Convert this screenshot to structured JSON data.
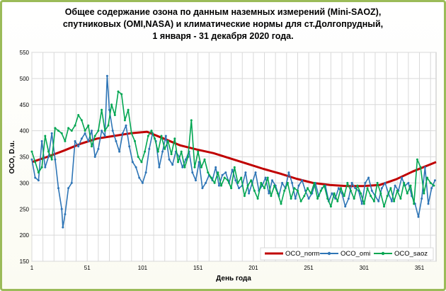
{
  "chart_data": {
    "type": "line",
    "title": [
      "Общее содержание озона по данным  наземных измерений (Mini-SAOZ),",
      "спутниковых (OMI,NASA) и климатические  нормы для ст.Долгопрудный,",
      "1 января - 31 декабря 2020 года."
    ],
    "xlabel": "День года",
    "ylabel": "ОСО, D.u.",
    "xlim": [
      1,
      366
    ],
    "ylim": [
      150,
      550
    ],
    "xticks": [
      1,
      51,
      101,
      151,
      201,
      251,
      301,
      351
    ],
    "yticks": [
      150,
      200,
      250,
      300,
      350,
      400,
      450,
      500,
      550
    ],
    "grid": true,
    "legend_position": "bottom-right",
    "series": [
      {
        "name": "OCO_norm",
        "color": "#c00000",
        "marker": "none",
        "x": [
          1,
          15,
          30,
          45,
          60,
          75,
          90,
          105,
          120,
          135,
          150,
          165,
          180,
          195,
          210,
          225,
          240,
          255,
          270,
          285,
          300,
          315,
          330,
          345,
          366
        ],
        "y": [
          340,
          350,
          362,
          375,
          385,
          390,
          395,
          398,
          385,
          372,
          364,
          357,
          347,
          337,
          327,
          318,
          308,
          300,
          296,
          294,
          294,
          296,
          307,
          322,
          340
        ]
      },
      {
        "name": "OCO_omi",
        "color": "#2e75b6",
        "marker": "dot",
        "x": [
          1,
          4,
          7,
          10,
          13,
          16,
          19,
          22,
          25,
          28,
          29,
          31,
          34,
          37,
          40,
          43,
          46,
          49,
          52,
          55,
          58,
          61,
          64,
          67,
          69,
          71,
          74,
          77,
          80,
          83,
          86,
          89,
          92,
          95,
          98,
          101,
          104,
          107,
          110,
          113,
          116,
          119,
          122,
          125,
          128,
          131,
          134,
          137,
          140,
          143,
          146,
          149,
          152,
          155,
          158,
          161,
          164,
          167,
          170,
          173,
          176,
          179,
          182,
          185,
          188,
          191,
          194,
          197,
          200,
          203,
          206,
          209,
          212,
          215,
          218,
          221,
          224,
          227,
          230,
          233,
          236,
          239,
          242,
          245,
          248,
          251,
          254,
          257,
          260,
          263,
          266,
          269,
          272,
          275,
          278,
          281,
          284,
          287,
          290,
          293,
          296,
          299,
          302,
          305,
          308,
          311,
          314,
          317,
          320,
          323,
          326,
          329,
          332,
          335,
          338,
          341,
          344,
          347,
          350,
          353,
          356,
          359,
          362,
          365
        ],
        "y": [
          345,
          310,
          305,
          380,
          330,
          350,
          395,
          345,
          290,
          250,
          215,
          240,
          290,
          300,
          380,
          370,
          385,
          395,
          380,
          400,
          350,
          365,
          400,
          390,
          505,
          440,
          400,
          380,
          360,
          395,
          410,
          370,
          340,
          330,
          310,
          300,
          320,
          365,
          395,
          380,
          330,
          360,
          390,
          345,
          335,
          360,
          350,
          330,
          345,
          360,
          320,
          305,
          340,
          290,
          300,
          315,
          305,
          330,
          295,
          315,
          320,
          300,
          325,
          305,
          290,
          295,
          320,
          280,
          300,
          320,
          285,
          295,
          310,
          280,
          305,
          295,
          275,
          300,
          290,
          320,
          300,
          270,
          295,
          305,
          285,
          270,
          280,
          300,
          275,
          290,
          295,
          265,
          280,
          270,
          290,
          280,
          255,
          270,
          300,
          290,
          285,
          260,
          300,
          310,
          285,
          275,
          265,
          290,
          300,
          280,
          265,
          295,
          285,
          310,
          295,
          300,
          275,
          260,
          235,
          270,
          330,
          260,
          290,
          305
        ],
        "annotations": []
      },
      {
        "name": "OCO_saoz",
        "color": "#00a651",
        "marker": "dot",
        "x": [
          1,
          4,
          7,
          10,
          13,
          16,
          19,
          22,
          25,
          28,
          31,
          34,
          37,
          40,
          43,
          46,
          49,
          52,
          55,
          58,
          61,
          64,
          67,
          70,
          73,
          76,
          79,
          82,
          85,
          88,
          91,
          94,
          97,
          100,
          103,
          106,
          109,
          112,
          115,
          118,
          121,
          124,
          127,
          130,
          133,
          136,
          139,
          142,
          145,
          148,
          151,
          154,
          157,
          160,
          163,
          166,
          169,
          172,
          175,
          178,
          181,
          184,
          187,
          190,
          193,
          196,
          199,
          202,
          205,
          208,
          211,
          214,
          217,
          220,
          223,
          226,
          229,
          232,
          235,
          238,
          241,
          244,
          247,
          250,
          253,
          256,
          259,
          262,
          265,
          268,
          271,
          274,
          277,
          280,
          283,
          286,
          289,
          292,
          295,
          298,
          301,
          304,
          307,
          310,
          313,
          316,
          319,
          322,
          325,
          328,
          331,
          334,
          337,
          340,
          343,
          346,
          349,
          352,
          355,
          358,
          361,
          364
        ],
        "y": [
          360,
          340,
          320,
          330,
          390,
          360,
          345,
          405,
          400,
          395,
          380,
          405,
          400,
          410,
          430,
          420,
          400,
          410,
          370,
          390,
          400,
          440,
          400,
          410,
          450,
          430,
          475,
          470,
          420,
          440,
          395,
          380,
          350,
          340,
          360,
          390,
          400,
          385,
          360,
          390,
          365,
          380,
          355,
          385,
          340,
          360,
          330,
          350,
          420,
          330,
          360,
          330,
          345,
          320,
          310,
          300,
          320,
          295,
          310,
          305,
          290,
          330,
          300,
          310,
          275,
          295,
          305,
          285,
          270,
          300,
          290,
          310,
          275,
          295,
          280,
          260,
          285,
          300,
          270,
          290,
          285,
          265,
          275,
          290,
          280,
          300,
          270,
          285,
          295,
          270,
          255,
          280,
          265,
          290,
          275,
          300,
          285,
          270,
          295,
          280,
          260,
          290,
          275,
          265,
          300,
          280,
          255,
          275,
          290,
          265,
          285,
          270,
          300,
          280,
          295,
          260,
          345,
          330,
          280,
          310,
          300,
          295
        ]
      }
    ]
  },
  "colors": {
    "frame_border": "#9bbb59",
    "plot_background": "#ffffff",
    "grid": "#d9d9d9",
    "axis": "#7f7f7f"
  }
}
